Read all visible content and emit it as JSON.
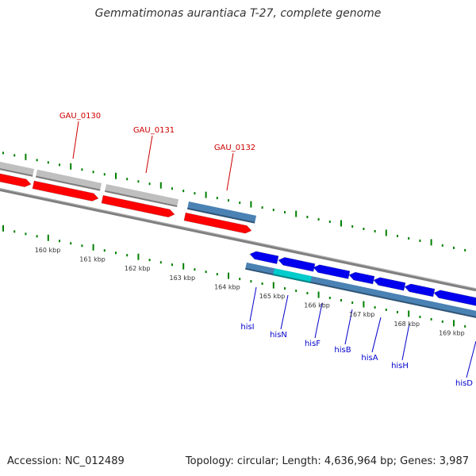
{
  "title": "Gemmatimonas aurantiaca T-27, complete genome",
  "footer": {
    "accession": "Accession: NC_012489",
    "summary": "Topology: circular; Length: 4,636,964 bp; Genes: 3,987"
  },
  "colors": {
    "forward_gene": "#ff0000",
    "reverse_gene": "#0000ee",
    "neutral_gene": "#bfbfbf",
    "highlight_gene": "#00cccc",
    "contig_bar": "#4a82b4",
    "backbone": "#808080",
    "tick": "#008000",
    "upper_labels": "#cc0000",
    "lower_labels": "#0000cc"
  },
  "scale_labels": [
    "160 kbp",
    "161 kbp",
    "162 kbp",
    "163 kbp",
    "164 kbp",
    "165 kbp",
    "166 kbp",
    "167 kbp",
    "168 kbp",
    "169 kbp"
  ],
  "upper_gene_labels": [
    "GAU_0130",
    "GAU_0131",
    "GAU_0132"
  ],
  "lower_gene_labels": [
    "hisI",
    "hisN",
    "hisF",
    "hisB",
    "hisA",
    "hisH",
    "hisD"
  ]
}
